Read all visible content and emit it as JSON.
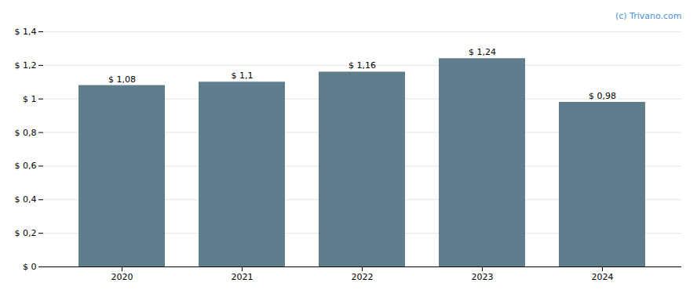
{
  "chart_data": {
    "type": "bar",
    "categories": [
      "2020",
      "2021",
      "2022",
      "2023",
      "2024"
    ],
    "values": [
      1.08,
      1.1,
      1.16,
      1.24,
      0.98
    ],
    "value_labels": [
      "$ 1,08",
      "$ 1,1",
      "$ 1,16",
      "$ 1,24",
      "$ 0,98"
    ],
    "data_labels": true,
    "color": "#5f7d8c",
    "ylim": [
      0,
      1.4
    ],
    "yticks": [
      {
        "value": 0,
        "label": "$ 0"
      },
      {
        "value": 0.2,
        "label": "$ 0,2"
      },
      {
        "value": 0.4,
        "label": "$ 0,4"
      },
      {
        "value": 0.6,
        "label": "$ 0,6"
      },
      {
        "value": 0.8,
        "label": "$ 0,8"
      },
      {
        "value": 1.0,
        "label": "$ 1"
      },
      {
        "value": 1.2,
        "label": "$ 1,2"
      },
      {
        "value": 1.4,
        "label": "$ 1,4"
      }
    ],
    "grid": true,
    "annotations": [
      {
        "text": "(c) Trivano.com",
        "color": "#4a90d9"
      }
    ]
  }
}
